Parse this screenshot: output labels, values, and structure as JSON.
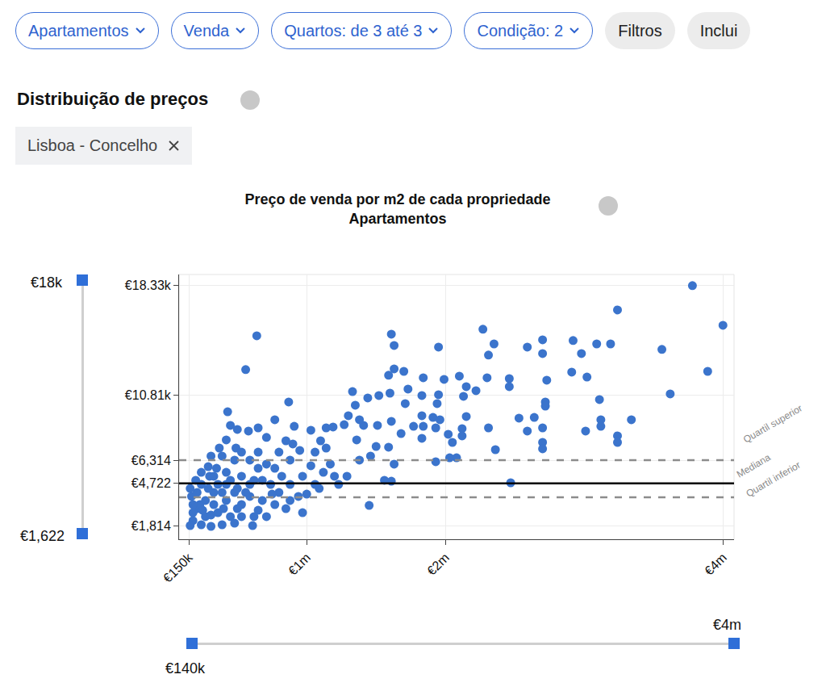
{
  "page": {
    "filters": [
      "Apartamentos",
      "Venda",
      "Quartos: de 3 até 3",
      "Condição: 2"
    ],
    "buttons": [
      "Filtros",
      "Inclui"
    ],
    "section_title": "Distribuição de preços",
    "location_chip": "Lisboa - Concelho",
    "y_slider": {
      "max": {
        "value": 18000,
        "label": "€18k"
      },
      "min": {
        "value": 1622,
        "label": "€1,622"
      }
    },
    "x_slider": {
      "min": {
        "value": 140000,
        "label": "€140k"
      },
      "max": {
        "value": 4000000,
        "label": "€4m"
      }
    }
  },
  "chart_data": {
    "type": "scatter",
    "title": "Preço de venda por m2 de cada propriedade",
    "subtitle": "Apartamentos",
    "color": "#3b74cc",
    "marker": "circle",
    "grid": true,
    "xlim": [
      80000,
      4080000
    ],
    "ylim": [
      870,
      19100
    ],
    "xticks": [
      {
        "value": 150000,
        "label": "€150k"
      },
      {
        "value": 1000000,
        "label": "€1m"
      },
      {
        "value": 2000000,
        "label": "€2m"
      },
      {
        "value": 4000000,
        "label": "€4m"
      }
    ],
    "yticks": [
      {
        "value": 1814,
        "label": "€1,814"
      },
      {
        "value": 4722,
        "label": "€4,722"
      },
      {
        "value": 6314,
        "label": "€6,314"
      },
      {
        "value": 10810,
        "label": "€10.81k"
      },
      {
        "value": 18330,
        "label": "€18.33k"
      }
    ],
    "reference_lines": [
      {
        "label": "Quartil superior",
        "value": 6314,
        "line_style": "dashed"
      },
      {
        "label": "Mediana",
        "value": 4722,
        "line_style": "solid"
      },
      {
        "label": "Quartil inferior",
        "value": 3760,
        "line_style": "dashed"
      }
    ],
    "x": [
      3780000,
      4000000,
      3240000,
      3890000,
      3620000,
      3560000,
      2920000,
      3090000,
      3190000,
      2980000,
      2910000,
      3020000,
      3110000,
      3120000,
      3120000,
      3340000,
      3010000,
      3240000,
      3240000,
      2700000,
      2700000,
      2590000,
      2350000,
      2270000,
      2310000,
      2300000,
      2460000,
      2460000,
      2730000,
      2720000,
      2720000,
      2640000,
      2530000,
      2700000,
      2700000,
      2700000,
      2590000,
      2360000,
      2310000,
      2470000,
      2220000,
      2150000,
      2100000,
      2130000,
      2150000,
      2120000,
      2120000,
      2050000,
      1950000,
      1990000,
      1950000,
      1940000,
      1910000,
      1960000,
      1930000,
      2020000,
      1830000,
      1930000,
      2080000,
      2030000,
      1840000,
      1830000,
      1730000,
      1700000,
      1630000,
      1630000,
      1610000,
      1590000,
      1520000,
      1600000,
      1710000,
      1830000,
      1840000,
      1770000,
      1680000,
      1610000,
      1590000,
      1630000,
      1610000,
      1560000,
      1450000,
      1500000,
      1510000,
      1410000,
      1330000,
      1350000,
      1440000,
      1380000,
      1300000,
      1270000,
      1140000,
      1190000,
      1100000,
      1030000,
      1140000,
      1060000,
      1030000,
      950000,
      910000,
      870000,
      900000,
      850000,
      800000,
      770000,
      710000,
      650000,
      640000,
      560000,
      580000,
      500000,
      430000,
      450000,
      420000,
      490000,
      390000,
      310000,
      290000,
      590000,
      710000,
      820000,
      880000,
      970000,
      1000000,
      1120000,
      1170000,
      1230000,
      1290000,
      1380000,
      1460000,
      1360000,
      1200000,
      1090000,
      880000,
      770000,
      650000,
      800000,
      710000,
      610000,
      530000,
      480000,
      390000,
      310000,
      240000,
      180000,
      160000,
      170000,
      210000,
      270000,
      330000,
      240000,
      300000,
      360000,
      420000,
      480000,
      530000,
      590000,
      650000,
      680000,
      740000,
      420000,
      480000,
      530000,
      590000,
      360000,
      450000,
      270000,
      230000,
      330000,
      390000,
      180000,
      210000,
      290000,
      350000,
      450000,
      500000,
      560000,
      620000,
      180000,
      250000,
      310000,
      400000,
      500000,
      620000,
      680000,
      750000,
      850000,
      940000,
      1060000,
      970000,
      880000,
      770000,
      420000,
      370000,
      530000,
      650000,
      330000,
      240000,
      200000,
      160000
    ],
    "values": [
      18330,
      15600,
      16660,
      12430,
      10880,
      13940,
      14550,
      14320,
      14320,
      13660,
      12380,
      12040,
      10490,
      9100,
      8650,
      9100,
      8320,
      7990,
      7540,
      14600,
      13660,
      14100,
      14320,
      15330,
      13550,
      11990,
      11930,
      11380,
      11820,
      10320,
      10040,
      9260,
      9210,
      8540,
      7540,
      7100,
      8320,
      7040,
      8540,
      4760,
      11100,
      11380,
      12100,
      10710,
      9320,
      8490,
      7990,
      7540,
      14100,
      11880,
      10820,
      10210,
      9260,
      9100,
      8540,
      8100,
      7820,
      6210,
      6480,
      6480,
      11990,
      10770,
      11210,
      12430,
      14210,
      12600,
      14990,
      12160,
      10770,
      10930,
      10210,
      9380,
      8650,
      8650,
      8150,
      8990,
      7210,
      6040,
      4870,
      4930,
      3200,
      7260,
      8710,
      8710,
      11040,
      10100,
      10600,
      9100,
      9380,
      8760,
      8540,
      8600,
      7650,
      8380,
      7150,
      6870,
      5930,
      6990,
      8650,
      10320,
      7430,
      7650,
      6870,
      9100,
      7880,
      8540,
      14880,
      12550,
      8320,
      8430,
      9650,
      8710,
      7710,
      7150,
      6600,
      6600,
      5870,
      6320,
      6040,
      5210,
      4650,
      2700,
      3980,
      5480,
      6040,
      4650,
      5210,
      6320,
      6600,
      7710,
      5210,
      4370,
      3540,
      3260,
      2870,
      4090,
      2430,
      1810,
      2430,
      1980,
      1870,
      1760,
      1870,
      2150,
      1810,
      3820,
      2980,
      3540,
      4090,
      4650,
      5210,
      4650,
      5480,
      6320,
      5210,
      4650,
      5760,
      4930,
      4650,
      3540,
      4090,
      3260,
      3820,
      2700,
      2430,
      2430,
      3260,
      3260,
      4090,
      2700,
      4090,
      4370,
      5760,
      4930,
      4370,
      4090,
      4930,
      3260,
      2870,
      2540,
      2980,
      2980,
      2430,
      3540,
      3980,
      2980,
      3820,
      4650,
      5210,
      6320,
      5760,
      4650,
      7150,
      6870,
      6870,
      5210,
      5480,
      4930,
      4370
    ]
  }
}
